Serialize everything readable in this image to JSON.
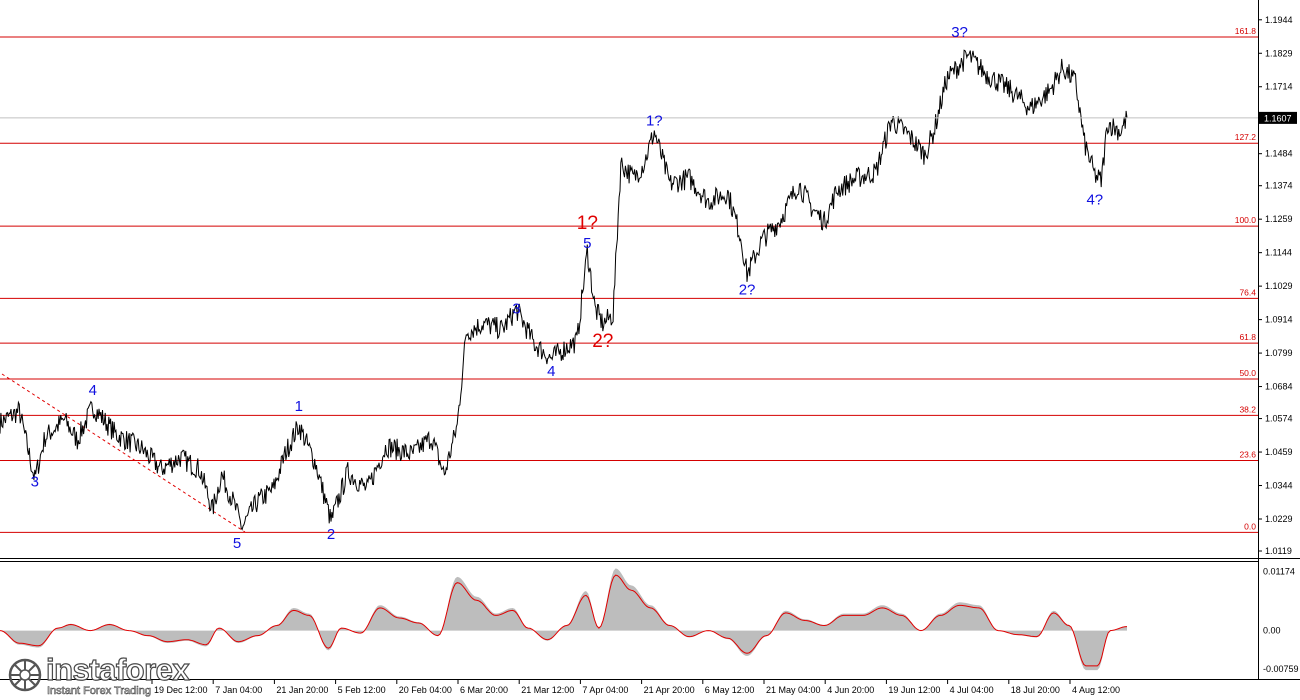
{
  "chart_data": [
    {
      "type": "line",
      "title": "",
      "price_axis_ticks": [
        "1.1944",
        "1.1829",
        "1.1714",
        "1.1607",
        "1.1484",
        "1.1374",
        "1.1259",
        "1.1144",
        "1.1029",
        "1.0914",
        "1.0799",
        "1.0684",
        "1.0574",
        "1.0459",
        "1.0344",
        "1.0229",
        "1.0119"
      ],
      "current_price": "1.1607",
      "ylim": [
        1.0095,
        1.2012
      ],
      "time_axis_ticks": [
        "19 Dec 12:00",
        "7 Jan 04:00",
        "21 Jan 20:00",
        "5 Feb 12:00",
        "20 Feb 04:00",
        "6 Mar 20:00",
        "21 Mar 12:00",
        "7 Apr 04:00",
        "21 Apr 20:00",
        "6 May 12:00",
        "21 May 04:00",
        "4 Jun 20:00",
        "19 Jun 12:00",
        "4 Jul 04:00",
        "18 Jul 20:00",
        "4 Aug 12:00"
      ],
      "fibonacci_levels": [
        {
          "label": "0.0",
          "price": 1.0183
        },
        {
          "label": "23.6",
          "price": 1.043
        },
        {
          "label": "38.2",
          "price": 1.0585
        },
        {
          "label": "50.0",
          "price": 1.071
        },
        {
          "label": "61.8",
          "price": 1.0833
        },
        {
          "label": "76.4",
          "price": 1.0987
        },
        {
          "label": "100.0",
          "price": 1.1235
        },
        {
          "label": "127.2",
          "price": 1.152
        },
        {
          "label": "161.8",
          "price": 1.1885
        }
      ],
      "wave_labels": [
        {
          "text": "3",
          "t": 0.027,
          "price": 1.034,
          "color": "blue"
        },
        {
          "text": "4",
          "t": 0.072,
          "price": 1.0655,
          "color": "blue"
        },
        {
          "text": "5",
          "t": 0.184,
          "price": 1.013,
          "color": "blue"
        },
        {
          "text": "1",
          "t": 0.232,
          "price": 1.06,
          "color": "blue"
        },
        {
          "text": "2",
          "t": 0.257,
          "price": 1.016,
          "color": "blue"
        },
        {
          "text": "3",
          "t": 0.401,
          "price": 1.0935,
          "color": "blue"
        },
        {
          "text": "4",
          "t": 0.428,
          "price": 1.072,
          "color": "blue"
        },
        {
          "text": "5",
          "t": 0.456,
          "price": 1.116,
          "color": "blue"
        },
        {
          "text": "1?",
          "t": 0.456,
          "price": 1.1225,
          "color": "red"
        },
        {
          "text": "2?",
          "t": 0.468,
          "price": 1.082,
          "color": "red"
        },
        {
          "text": "1?",
          "t": 0.508,
          "price": 1.158,
          "color": "blue"
        },
        {
          "text": "2?",
          "t": 0.58,
          "price": 1.1,
          "color": "blue"
        },
        {
          "text": "3?",
          "t": 0.745,
          "price": 1.1885,
          "color": "blue"
        },
        {
          "text": "4?",
          "t": 0.85,
          "price": 1.131,
          "color": "blue"
        }
      ],
      "anchors": [
        [
          0.0,
          1.056
        ],
        [
          0.015,
          1.06
        ],
        [
          0.027,
          1.0365
        ],
        [
          0.035,
          1.051
        ],
        [
          0.05,
          1.057
        ],
        [
          0.06,
          1.05
        ],
        [
          0.072,
          1.0615
        ],
        [
          0.09,
          1.052
        ],
        [
          0.11,
          1.047
        ],
        [
          0.125,
          1.04
        ],
        [
          0.14,
          1.044
        ],
        [
          0.155,
          1.04
        ],
        [
          0.165,
          1.026
        ],
        [
          0.172,
          1.038
        ],
        [
          0.18,
          1.03
        ],
        [
          0.188,
          1.02
        ],
        [
          0.2,
          1.029
        ],
        [
          0.212,
          1.033
        ],
        [
          0.222,
          1.046
        ],
        [
          0.232,
          1.055
        ],
        [
          0.245,
          1.042
        ],
        [
          0.257,
          1.022
        ],
        [
          0.27,
          1.039
        ],
        [
          0.285,
          1.033
        ],
        [
          0.3,
          1.048
        ],
        [
          0.32,
          1.045
        ],
        [
          0.335,
          1.051
        ],
        [
          0.345,
          1.038
        ],
        [
          0.355,
          1.055
        ],
        [
          0.362,
          1.087
        ],
        [
          0.375,
          1.09
        ],
        [
          0.39,
          1.088
        ],
        [
          0.401,
          1.095
        ],
        [
          0.415,
          1.083
        ],
        [
          0.428,
          1.078
        ],
        [
          0.44,
          1.082
        ],
        [
          0.448,
          1.084
        ],
        [
          0.456,
          1.115
        ],
        [
          0.462,
          1.095
        ],
        [
          0.468,
          1.09
        ],
        [
          0.476,
          1.093
        ],
        [
          0.482,
          1.145
        ],
        [
          0.492,
          1.14
        ],
        [
          0.5,
          1.145
        ],
        [
          0.508,
          1.156
        ],
        [
          0.52,
          1.138
        ],
        [
          0.535,
          1.14
        ],
        [
          0.55,
          1.132
        ],
        [
          0.565,
          1.135
        ],
        [
          0.575,
          1.12
        ],
        [
          0.58,
          1.107
        ],
        [
          0.592,
          1.119
        ],
        [
          0.605,
          1.125
        ],
        [
          0.62,
          1.138
        ],
        [
          0.63,
          1.13
        ],
        [
          0.64,
          1.125
        ],
        [
          0.65,
          1.136
        ],
        [
          0.665,
          1.14
        ],
        [
          0.68,
          1.142
        ],
        [
          0.692,
          1.16
        ],
        [
          0.705,
          1.155
        ],
        [
          0.718,
          1.148
        ],
        [
          0.725,
          1.156
        ],
        [
          0.735,
          1.174
        ],
        [
          0.745,
          1.179
        ],
        [
          0.752,
          1.182
        ],
        [
          0.765,
          1.176
        ],
        [
          0.785,
          1.17
        ],
        [
          0.8,
          1.164
        ],
        [
          0.815,
          1.17
        ],
        [
          0.825,
          1.178
        ],
        [
          0.835,
          1.173
        ],
        [
          0.842,
          1.152
        ],
        [
          0.85,
          1.141
        ],
        [
          0.855,
          1.139
        ],
        [
          0.86,
          1.159
        ],
        [
          0.87,
          1.156
        ],
        [
          0.875,
          1.1607
        ]
      ],
      "oscillator": {
        "ticks": [
          "0.01174",
          "0.00",
          "-0.00759"
        ],
        "ylim": [
          -0.009,
          0.0128
        ],
        "anchors": [
          [
            0.0,
            0.0
          ],
          [
            0.015,
            -0.0025
          ],
          [
            0.03,
            -0.003
          ],
          [
            0.045,
            0.0005
          ],
          [
            0.055,
            0.0012
          ],
          [
            0.07,
            0.0
          ],
          [
            0.085,
            0.0012
          ],
          [
            0.1,
            0.0
          ],
          [
            0.115,
            -0.001
          ],
          [
            0.13,
            -0.0022
          ],
          [
            0.145,
            -0.0018
          ],
          [
            0.16,
            -0.0028
          ],
          [
            0.17,
            0.0005
          ],
          [
            0.185,
            -0.0022
          ],
          [
            0.2,
            -0.001
          ],
          [
            0.215,
            0.001
          ],
          [
            0.228,
            0.004
          ],
          [
            0.24,
            0.003
          ],
          [
            0.255,
            -0.0035
          ],
          [
            0.265,
            0.0005
          ],
          [
            0.28,
            -0.0005
          ],
          [
            0.295,
            0.0045
          ],
          [
            0.31,
            0.0025
          ],
          [
            0.325,
            0.0015
          ],
          [
            0.34,
            -0.001
          ],
          [
            0.355,
            0.0095
          ],
          [
            0.37,
            0.006
          ],
          [
            0.385,
            0.003
          ],
          [
            0.398,
            0.004
          ],
          [
            0.41,
            0.0005
          ],
          [
            0.425,
            -0.0018
          ],
          [
            0.44,
            0.001
          ],
          [
            0.455,
            0.007
          ],
          [
            0.465,
            0.0005
          ],
          [
            0.478,
            0.011
          ],
          [
            0.49,
            0.008
          ],
          [
            0.505,
            0.0045
          ],
          [
            0.52,
            0.001
          ],
          [
            0.535,
            -0.0012
          ],
          [
            0.55,
            0.0
          ],
          [
            0.565,
            -0.0015
          ],
          [
            0.58,
            -0.0045
          ],
          [
            0.595,
            -0.001
          ],
          [
            0.61,
            0.0035
          ],
          [
            0.625,
            0.002
          ],
          [
            0.64,
            0.001
          ],
          [
            0.655,
            0.003
          ],
          [
            0.67,
            0.003
          ],
          [
            0.685,
            0.0045
          ],
          [
            0.7,
            0.003
          ],
          [
            0.715,
            0.0
          ],
          [
            0.73,
            0.003
          ],
          [
            0.745,
            0.005
          ],
          [
            0.76,
            0.0045
          ],
          [
            0.775,
            0.0
          ],
          [
            0.79,
            -0.0008
          ],
          [
            0.805,
            -0.0012
          ],
          [
            0.818,
            0.0035
          ],
          [
            0.83,
            0.001
          ],
          [
            0.843,
            -0.007
          ],
          [
            0.852,
            -0.007
          ],
          [
            0.862,
            0.0
          ],
          [
            0.875,
            0.0008
          ]
        ]
      }
    }
  ],
  "logo": {
    "name": "instaforex",
    "tagline": "Instant Forex Trading"
  }
}
